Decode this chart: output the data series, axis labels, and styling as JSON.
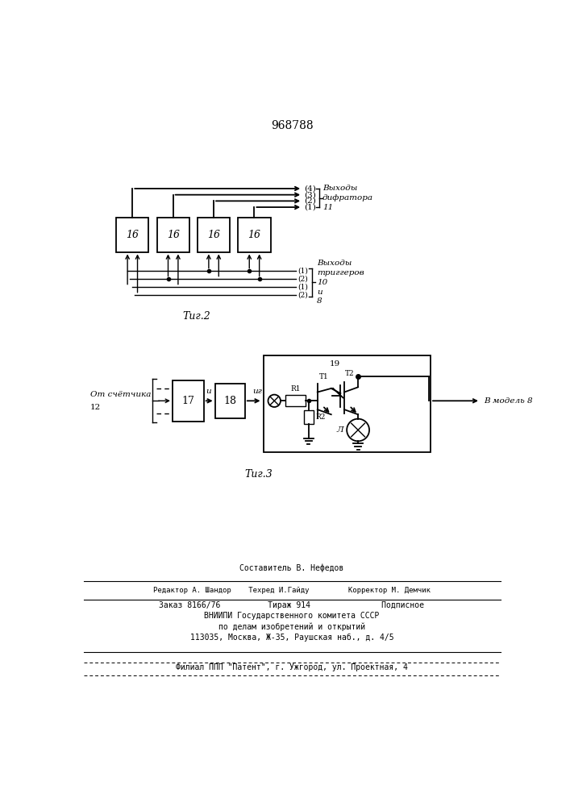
{
  "patent_number": "968788",
  "fig2_label": "Τиг.2",
  "fig3_label": "Τиг.3",
  "bg_color": "#ffffff",
  "outputs_difratora": "Выходы\nдифратора\n11",
  "outputs_triggerov": "Выходы\nтриггеров\n10\nи\n8",
  "ot_schetchika": "От счётчика",
  "v_model": "В модель 8"
}
